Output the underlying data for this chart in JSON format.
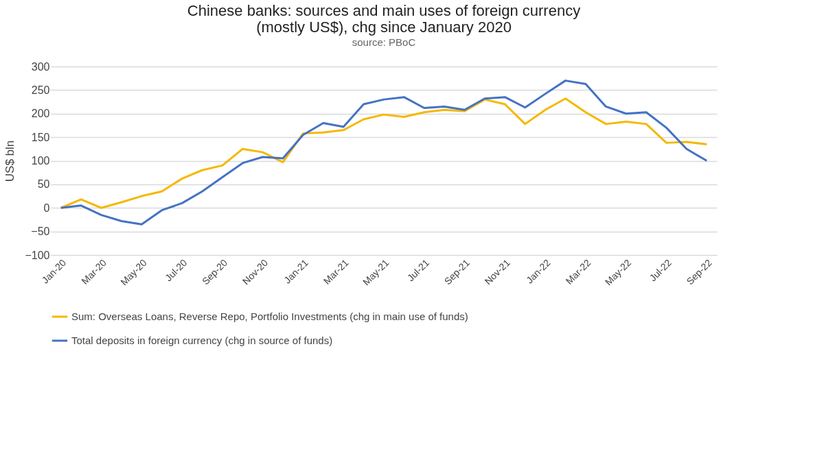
{
  "chart_data": {
    "type": "line",
    "title": [
      "Chinese banks: sources and main uses of foreign currency",
      "(mostly US$), chg since January 2020"
    ],
    "subtitle": "source: PBoC",
    "ylabel": "US$ bln",
    "categories": [
      "Jan-20",
      null,
      "Mar-20",
      null,
      "May-20",
      null,
      "Jul-20",
      null,
      "Sep-20",
      null,
      "Nov-20",
      null,
      "Jan-21",
      null,
      "Mar-21",
      null,
      "May-21",
      null,
      "Jul-21",
      null,
      "Sep-21",
      null,
      "Nov-21",
      null,
      "Jan-22",
      null,
      "Mar-22",
      null,
      "May-22",
      null,
      "Jul-22",
      null,
      "Sep-22"
    ],
    "series": [
      {
        "name": "Sum: Overseas Loans, Reverse Repo, Portfolio Investments (chg in main use of funds)",
        "color": "#f5b800",
        "values": [
          0,
          18,
          0,
          12,
          25,
          35,
          62,
          80,
          90,
          125,
          118,
          97,
          158,
          160,
          165,
          188,
          198,
          193,
          203,
          208,
          205,
          230,
          220,
          178,
          208,
          232,
          203,
          178,
          183,
          178,
          138,
          140,
          135
        ]
      },
      {
        "name": "Total deposits in foreign currency (chg in source of funds)",
        "color": "#4472c4",
        "values": [
          0,
          5,
          -15,
          -28,
          -35,
          -5,
          10,
          35,
          65,
          95,
          108,
          105,
          155,
          180,
          172,
          220,
          230,
          235,
          212,
          215,
          208,
          232,
          235,
          213,
          242,
          270,
          263,
          215,
          200,
          203,
          170,
          125,
          100
        ]
      }
    ],
    "ylim": [
      -100,
      300
    ],
    "yticks": [
      -100,
      -50,
      0,
      50,
      100,
      150,
      200,
      250,
      300
    ],
    "grid": "y",
    "legend": "bottom",
    "marker": "none",
    "line_style": "solid"
  }
}
